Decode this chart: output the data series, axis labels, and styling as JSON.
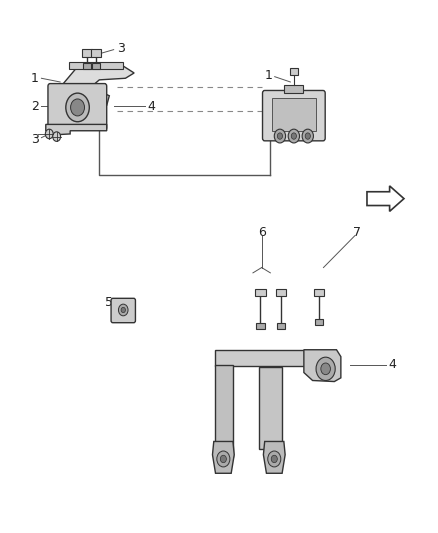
{
  "bg_color": "#ffffff",
  "fig_width": 4.38,
  "fig_height": 5.33,
  "dpi": 100,
  "line_color": "#555555",
  "label_fontsize": 9,
  "label_color": "#222222",
  "edge_color": "#333333",
  "mount_face": "#cccccc",
  "mount_face2": "#dddddd",
  "bolt_face": "#aaaaaa"
}
